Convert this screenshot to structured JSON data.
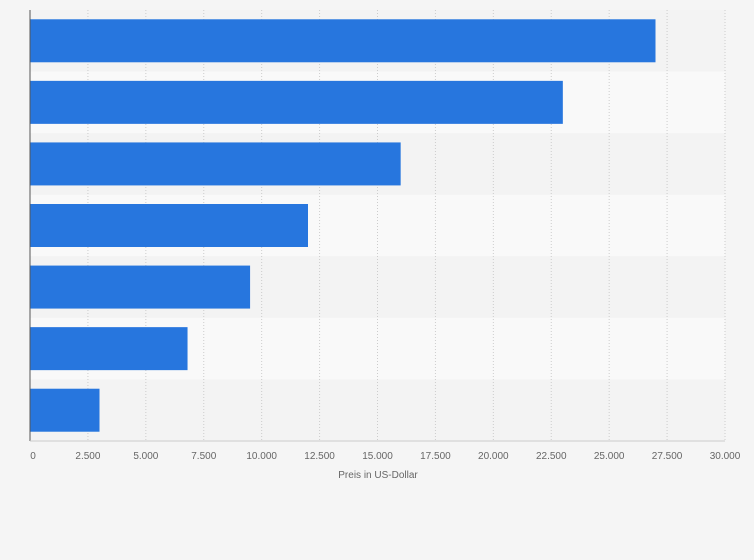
{
  "chart_data": {
    "type": "bar",
    "orientation": "horizontal",
    "categories": [
      "",
      "",
      "",
      "",
      "",
      "",
      ""
    ],
    "values": [
      27000,
      23000,
      16000,
      12000,
      9500,
      6800,
      3000
    ],
    "xlabel": "Preis in US-Dollar",
    "ylabel": "",
    "xlim": [
      0,
      30000
    ],
    "x_tick_labels": [
      "0",
      "2.500",
      "5.000",
      "7.500",
      "10.000",
      "12.500",
      "15.000",
      "17.500",
      "20.000",
      "22.500",
      "25.000",
      "27.500",
      "30.000"
    ],
    "grid": true,
    "legend": "none",
    "colors": {
      "bar": "#2776de",
      "band_light": "#f9f9f9",
      "band_dark": "#f3f3f3",
      "grid": "#cccccc",
      "axis": "#555555",
      "text": "#666666",
      "background": "#f5f5f5"
    }
  }
}
